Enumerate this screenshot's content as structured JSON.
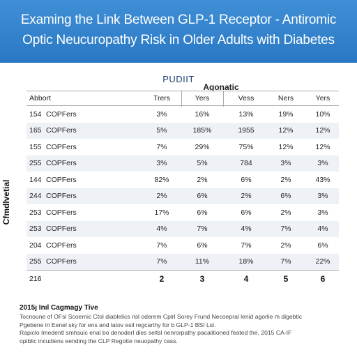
{
  "banner": {
    "line1": "Examing the Link Between GLP-1 Receptor - Antiromic",
    "line2": "Optic Neucuropathy Risk in Older Adults with Diabetes"
  },
  "table": {
    "caption": "PUDIIT",
    "group_header": "Agonatic",
    "side_label": "Cfmdlvetial",
    "headers": [
      "Abbort",
      "",
      "Trers",
      "Yers",
      "Vess",
      "Ners",
      "Yers"
    ],
    "rows": [
      [
        "154",
        "COPFers",
        "3%",
        "16%",
        "13%",
        "19%",
        "10%"
      ],
      [
        "165",
        "COPFers",
        "5%",
        "185%",
        "1955",
        "12%",
        "12%"
      ],
      [
        "155",
        "COPFers",
        "7%",
        "29%",
        "75%",
        "12%",
        "12%"
      ],
      [
        "255",
        "COPFers",
        "3%",
        "5%",
        "784",
        "3%",
        "3%"
      ],
      [
        "144",
        "COPFers",
        "82%",
        "2%",
        "6%",
        "2%",
        "43%"
      ],
      [
        "244",
        "COPFers",
        "2%",
        "6%",
        "2%",
        "6%",
        "3%"
      ],
      [
        "253",
        "COPFers",
        "17%",
        "6%",
        "6%",
        "2%",
        "3%"
      ],
      [
        "253",
        "COPFers",
        "4%",
        "7%",
        "4%",
        "7%",
        "4%"
      ],
      [
        "204",
        "COPFers",
        "7%",
        "6%",
        "7%",
        "2%",
        "6%"
      ],
      [
        "255",
        "COPFers",
        "7%",
        "11%",
        "18%",
        "7%",
        "22%"
      ]
    ],
    "footer": [
      "216",
      "",
      "2",
      "3",
      "4",
      "5",
      "6"
    ]
  },
  "notes": {
    "title": "2015ȷ Inıl Cagmagy Tive",
    "lines": [
      "Tocnoune of OFsl Scoernic Ctol diablelics risl oderem Cplrl Sorey Frund Necoepral lenid agorlie m digebtic",
      "Pgebene in Eenel sky for ens and latov esil regcarthy for b GLP-1 BSI Lsl.",
      "Rapiclo Imedentl smhsuic enal bo denoderl dies seltsl nenrorpathy pacalitioned feated the, 2015 CA-IF",
      "opiblic incudiens eending the CLP Regotte neuopathy cass."
    ]
  }
}
